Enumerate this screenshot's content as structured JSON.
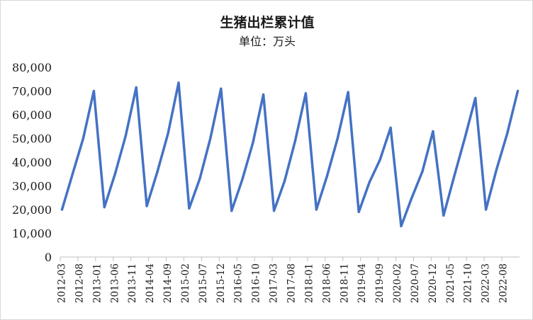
{
  "chart_data": {
    "type": "line",
    "title": "生猪出栏累计值",
    "subtitle": "单位：万头",
    "xlabel": "",
    "ylabel": "",
    "ylim": [
      0,
      80000
    ],
    "yticks": [
      "0",
      "10,000",
      "20,000",
      "30,000",
      "40,000",
      "50,000",
      "60,000",
      "70,000",
      "80,000"
    ],
    "x_tick_labels": [
      "2012-03",
      "2012-08",
      "2013-01",
      "2013-06",
      "2013-11",
      "2014-04",
      "2014-09",
      "2015-02",
      "2015-07",
      "2015-12",
      "2016-05",
      "2016-10",
      "2017-03",
      "2017-08",
      "2018-01",
      "2018-06",
      "2018-11",
      "2019-04",
      "2019-09",
      "2020-02",
      "2020-07",
      "2020-12",
      "2021-05",
      "2021-10",
      "2022-03",
      "2022-08"
    ],
    "grid": false,
    "legend": "none",
    "series": [
      {
        "color": "#4472c4",
        "x": [
          "2012-03",
          "2012-06",
          "2012-09",
          "2012-12",
          "2013-03",
          "2013-06",
          "2013-09",
          "2013-12",
          "2014-03",
          "2014-06",
          "2014-09",
          "2014-12",
          "2015-03",
          "2015-06",
          "2015-09",
          "2015-12",
          "2016-03",
          "2016-06",
          "2016-09",
          "2016-12",
          "2017-03",
          "2017-06",
          "2017-09",
          "2017-12",
          "2018-03",
          "2018-06",
          "2018-09",
          "2018-12",
          "2019-03",
          "2019-06",
          "2019-09",
          "2019-12",
          "2020-03",
          "2020-06",
          "2020-09",
          "2020-12",
          "2021-03",
          "2021-06",
          "2021-09",
          "2021-12",
          "2022-03",
          "2022-06",
          "2022-09",
          "2022-12"
        ],
        "values": [
          20000,
          35000,
          50000,
          70000,
          21000,
          35000,
          51000,
          71500,
          21500,
          36000,
          52000,
          73500,
          20500,
          33000,
          50000,
          71000,
          19500,
          32500,
          48000,
          68500,
          19500,
          32000,
          49000,
          69000,
          20000,
          34000,
          50000,
          69500,
          19000,
          31500,
          41000,
          54500,
          13000,
          25000,
          36000,
          53000,
          17500,
          34000,
          50000,
          67000,
          20000,
          37000,
          52000,
          70000
        ]
      }
    ]
  }
}
